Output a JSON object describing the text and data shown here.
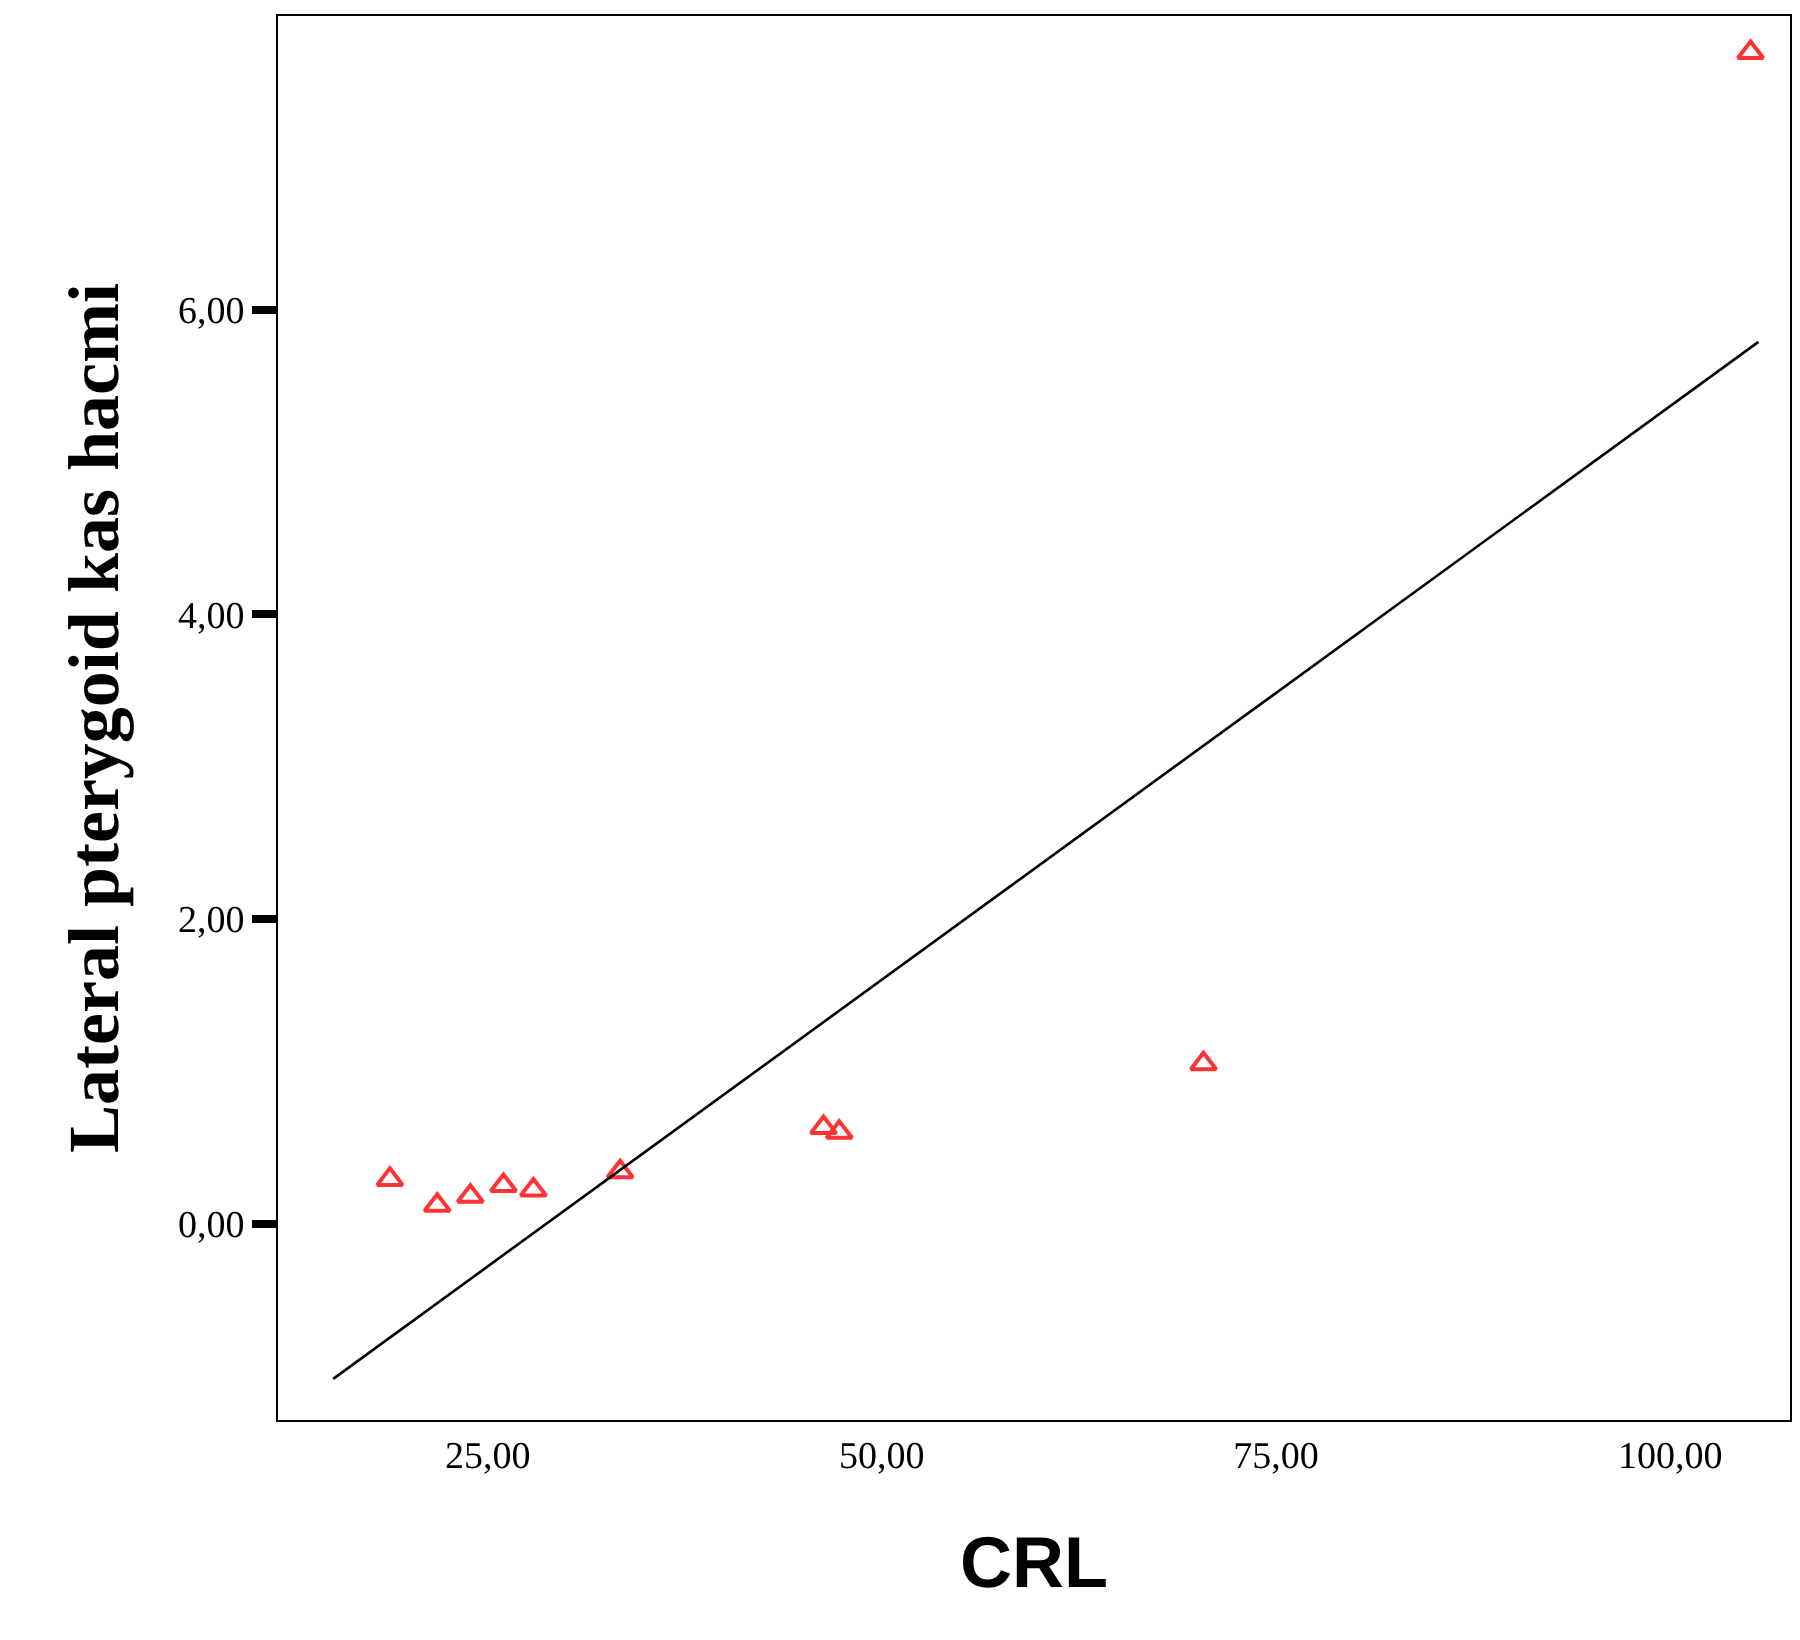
{
  "chart_data": {
    "type": "scatter",
    "xlabel": "CRL",
    "ylabel": "Lateral pterygoid kas hacmi",
    "xlim": [
      11.7,
      107.6
    ],
    "ylim": [
      -1.29,
      7.93
    ],
    "xticks": [
      {
        "value": 25,
        "label": "25,00"
      },
      {
        "value": 50,
        "label": "50,00"
      },
      {
        "value": 75,
        "label": "75,00"
      },
      {
        "value": 100,
        "label": "100,00"
      }
    ],
    "yticks": [
      {
        "value": 0,
        "label": "0,00"
      },
      {
        "value": 2,
        "label": "2,00"
      },
      {
        "value": 4,
        "label": "4,00"
      },
      {
        "value": 6,
        "label": "6,00"
      }
    ],
    "grid": false,
    "legend": false,
    "series": [
      {
        "marker": "triangle",
        "color": "#ff3333",
        "x": [
          18.8,
          21.8,
          23.9,
          26.0,
          27.9,
          33.4,
          46.3,
          47.3,
          70.4,
          105.1
        ],
        "values": [
          0.29,
          0.12,
          0.18,
          0.25,
          0.22,
          0.34,
          0.63,
          0.6,
          1.05,
          7.69
        ]
      },
      {
        "type": "line",
        "color": "#000000",
        "x": [
          15.2,
          105.6
        ],
        "values": [
          -1.02,
          5.79
        ]
      }
    ]
  }
}
